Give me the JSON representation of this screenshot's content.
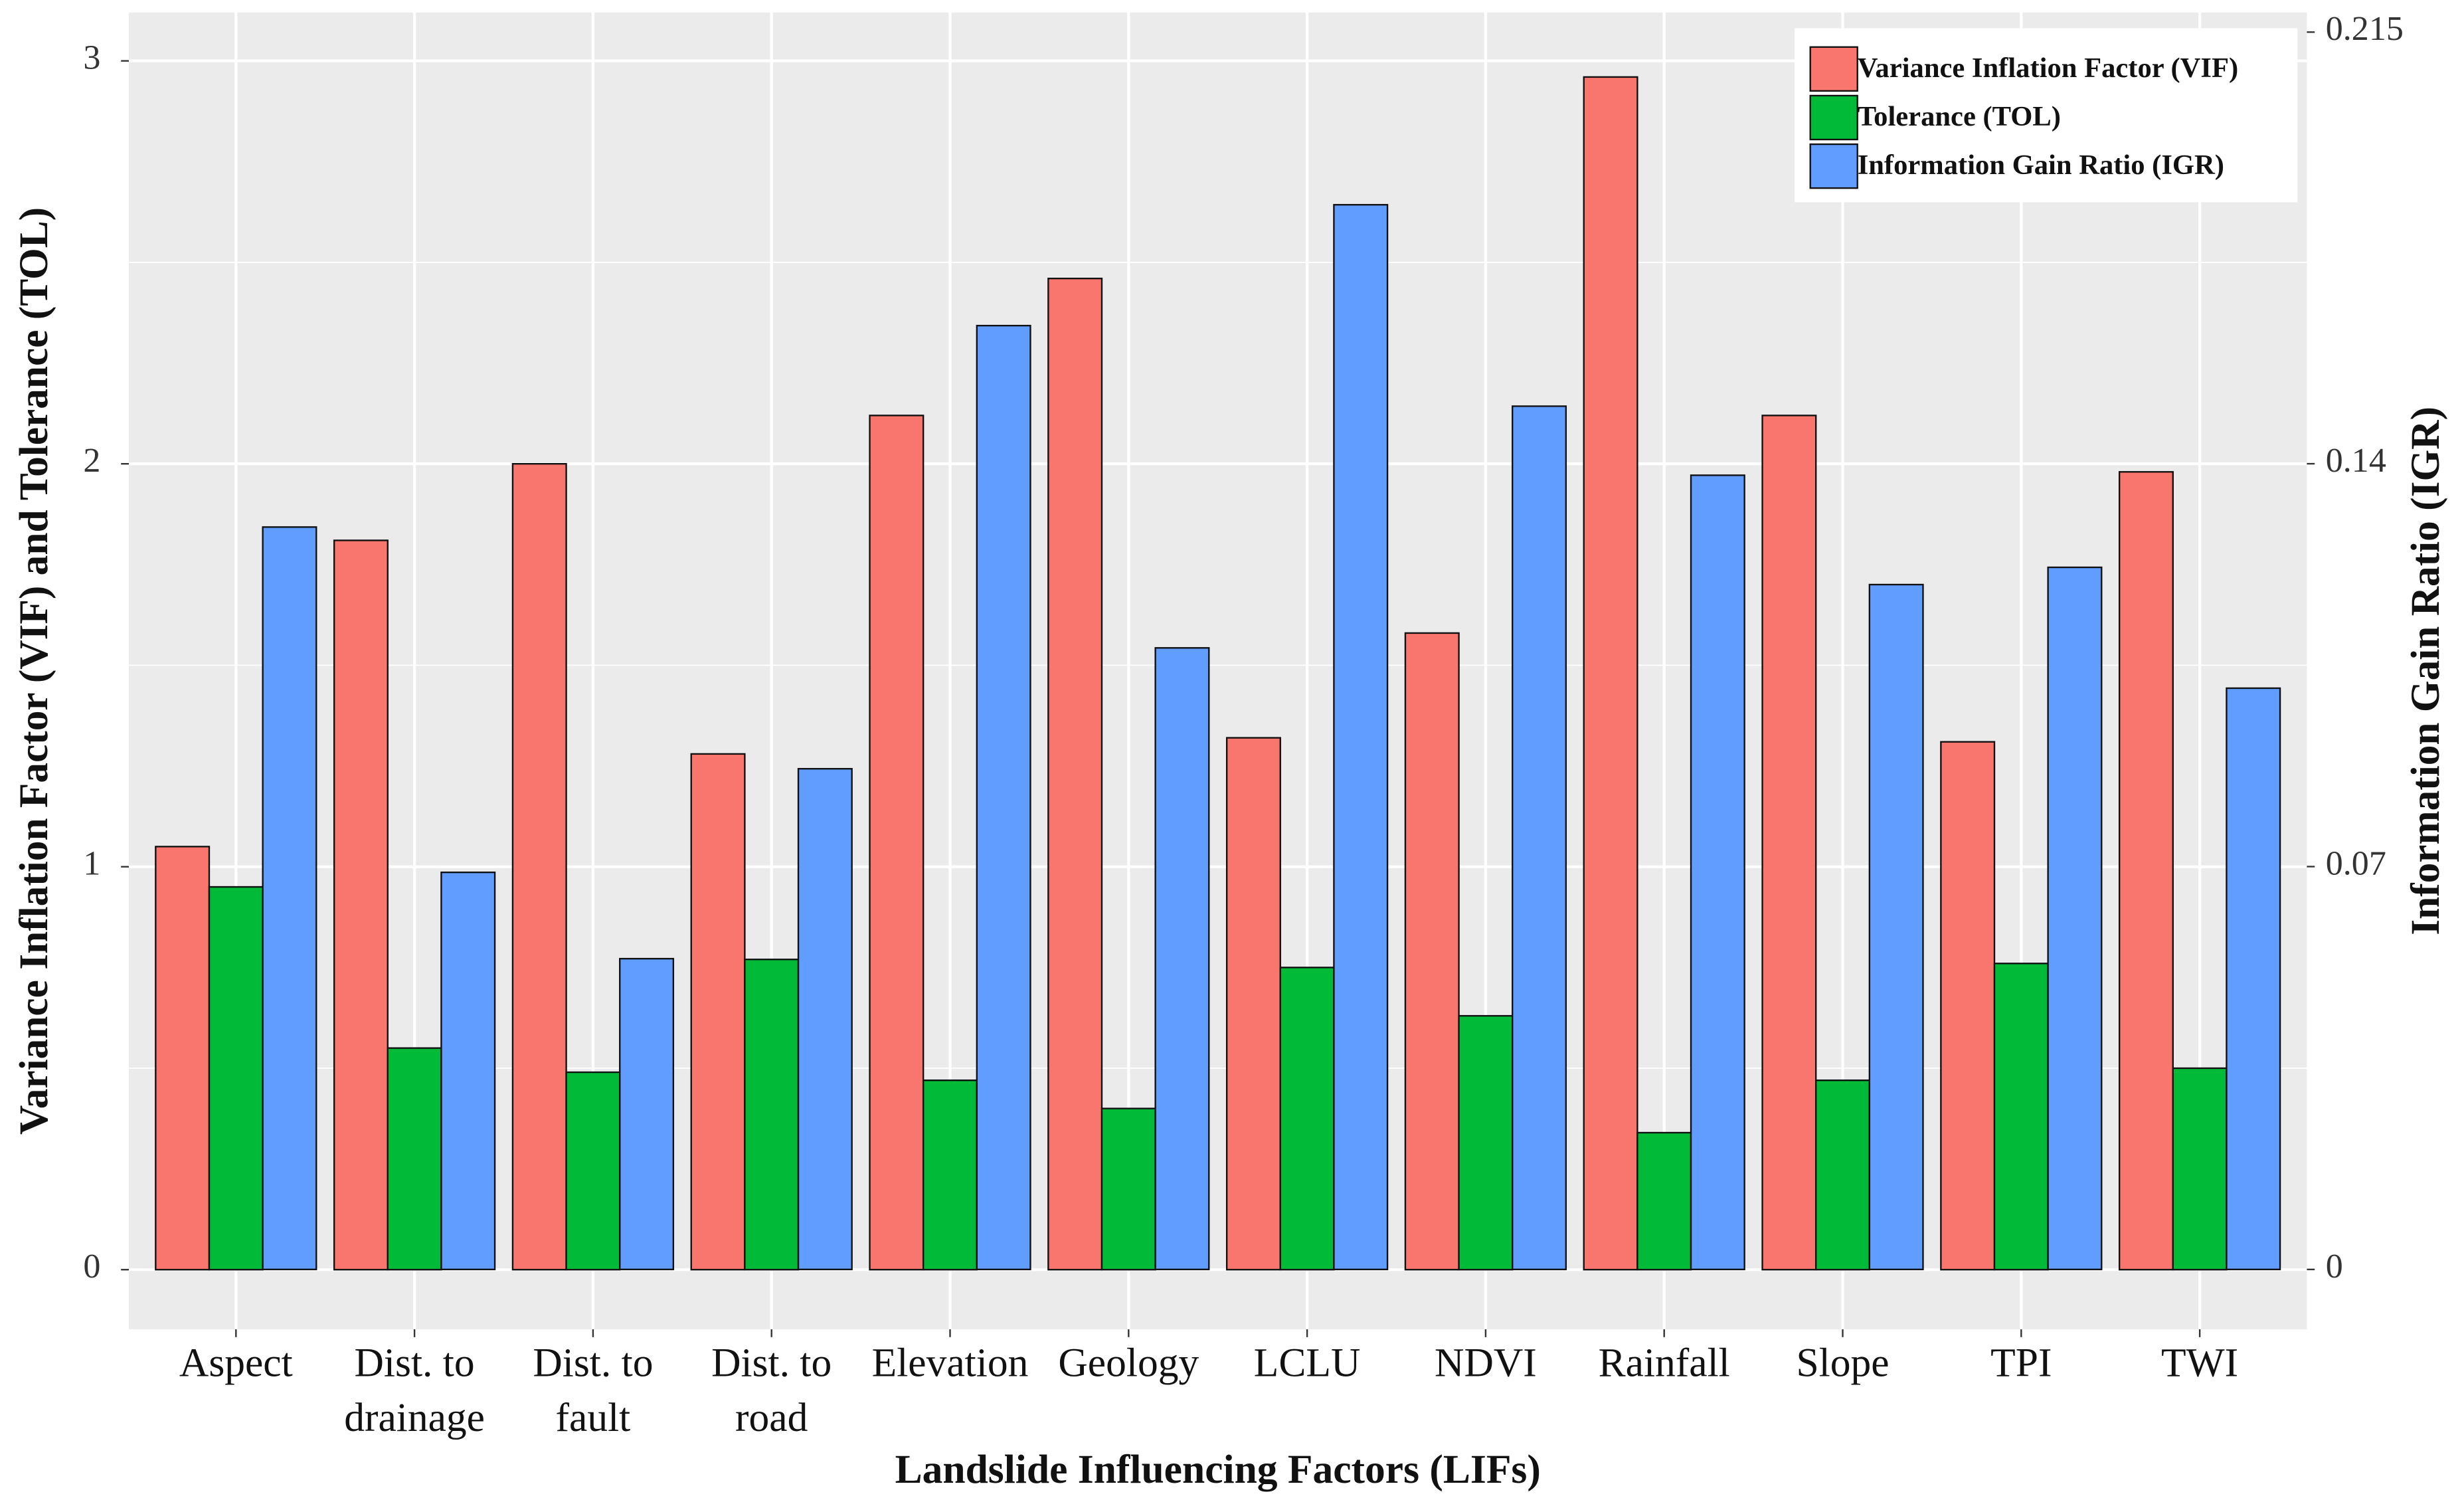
{
  "chart_data": {
    "type": "bar",
    "x_label": "Landslide Influencing Factors (LIFs)",
    "y_label": "Variance Inflation Factor (VIF) and Tolerance (TOL)",
    "y2_label": "Information Gain Ratio (IGR)",
    "categories": [
      "Aspect",
      "Dist. to\ndrainage",
      "Dist. to\nfault",
      "Dist. to\nroad",
      "Elevation",
      "Geology",
      "LCLU",
      "NDVI",
      "Rainfall",
      "Slope",
      "TPI",
      "TWI"
    ],
    "series": [
      {
        "name": "Variance Inflation Factor (VIF)",
        "color": "#F8766D",
        "values": [
          1.05,
          1.81,
          2.0,
          1.28,
          2.12,
          2.46,
          1.32,
          1.58,
          2.96,
          2.12,
          1.31,
          1.98
        ]
      },
      {
        "name": "Tolerance (TOL)",
        "color": "#00BA38",
        "values": [
          0.95,
          0.55,
          0.49,
          0.77,
          0.47,
          0.4,
          0.75,
          0.63,
          0.34,
          0.47,
          0.76,
          0.5
        ]
      },
      {
        "name": "Information Gain Ratio (IGR)",
        "color": "#619CFF",
        "axis": "y2",
        "values": [
          0.129,
          0.069,
          0.054,
          0.087,
          0.164,
          0.108,
          0.185,
          0.15,
          0.138,
          0.119,
          0.122,
          0.101
        ]
      }
    ],
    "ylim": [
      -0.148,
      3.12
    ],
    "yticks": [
      0,
      1,
      2,
      3
    ],
    "y2lim": [
      -0.0104,
      0.2184
    ],
    "y2ticks": [
      0,
      0.07,
      0.14,
      0.215
    ],
    "grid": true,
    "legend": "top-right"
  }
}
